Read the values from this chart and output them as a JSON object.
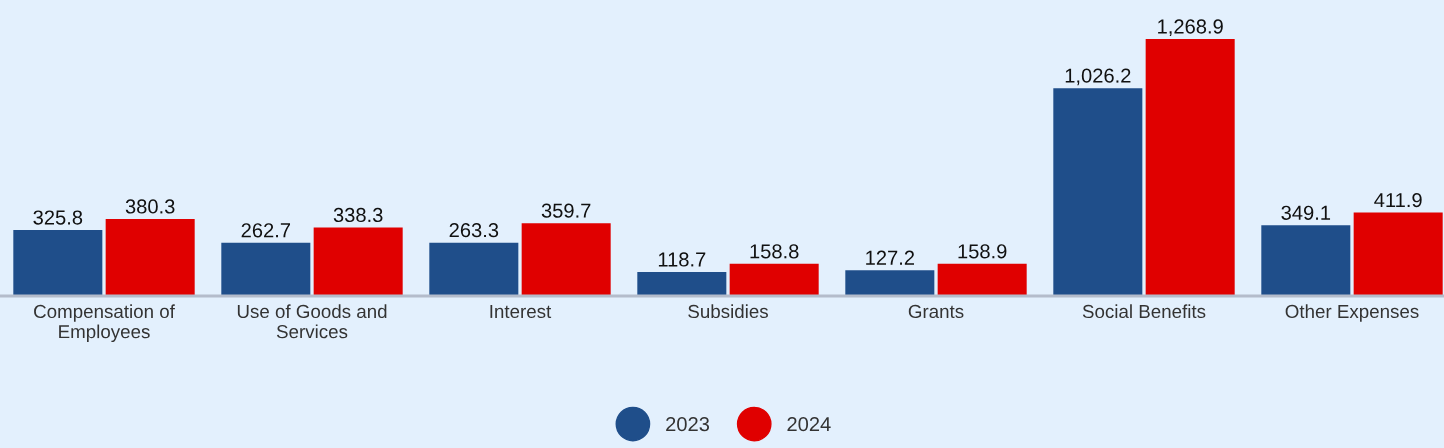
{
  "chart_data": {
    "type": "bar",
    "categories": [
      "Compensation of Employees",
      "Use of Goods and Services",
      "Interest",
      "Subsidies",
      "Grants",
      "Social Benefits",
      "Other Expenses"
    ],
    "series": [
      {
        "name": "2023",
        "color": "#1f4e8a",
        "values": [
          325.8,
          262.7,
          263.3,
          118.7,
          127.2,
          1026.2,
          349.1
        ],
        "value_labels": [
          "325.8",
          "262.7",
          "263.3",
          "118.7",
          "127.2",
          "1,026.2",
          "349.1"
        ]
      },
      {
        "name": "2024",
        "color": "#e00000",
        "values": [
          380.3,
          338.3,
          359.7,
          158.8,
          158.9,
          1268.9,
          411.9
        ],
        "value_labels": [
          "380.3",
          "338.3",
          "359.7",
          "158.8",
          "158.9",
          "1,268.9",
          "411.9"
        ]
      }
    ],
    "legend": "bottom"
  }
}
